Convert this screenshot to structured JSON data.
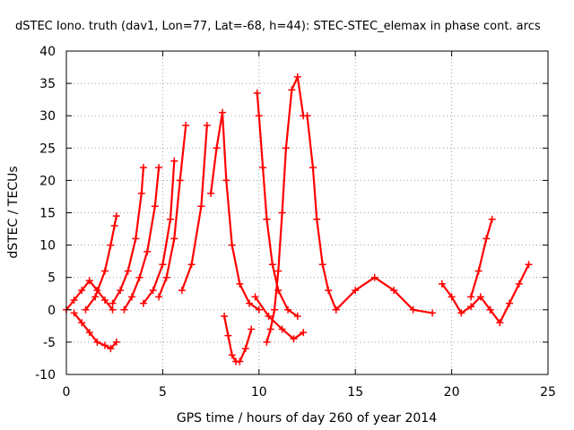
{
  "chart_data": {
    "type": "scatter",
    "title": "dSTEC Iono. truth (dav1, Lon=77, Lat=-68, h=44): STEC-STEC_elemax in phase cont. arcs",
    "xlabel": "GPS time / hours of day 260 of year 2014",
    "ylabel": "dSTEC  / TECUs",
    "xlim": [
      0,
      25
    ],
    "ylim": [
      -10,
      40
    ],
    "x_ticks": [
      "0",
      "5",
      "10",
      "15",
      "20",
      "25"
    ],
    "y_ticks": [
      "-10",
      "-5",
      "0",
      "5",
      "10",
      "15",
      "20",
      "25",
      "30",
      "35",
      "40"
    ],
    "grid": true,
    "marker": "+",
    "color": "#ff0000",
    "series": [
      {
        "x": [
          0.0,
          0.4,
          0.8,
          1.2,
          1.6,
          2.0,
          2.4
        ],
        "y": [
          0,
          1.5,
          3,
          4.5,
          3,
          1.5,
          0
        ]
      },
      {
        "x": [
          0.4,
          0.8,
          1.2,
          1.6,
          2.0,
          2.3,
          2.6
        ],
        "y": [
          -0.5,
          -2,
          -3.5,
          -5,
          -5.5,
          -6,
          -5
        ]
      },
      {
        "x": [
          1.0,
          1.5,
          2.0,
          2.3,
          2.5,
          2.6
        ],
        "y": [
          0,
          2,
          6,
          10,
          13,
          14.5
        ]
      },
      {
        "x": [
          2.4,
          2.8,
          3.2,
          3.6,
          3.9,
          4.0
        ],
        "y": [
          1,
          3,
          6,
          11,
          18,
          22
        ]
      },
      {
        "x": [
          3.0,
          3.4,
          3.8,
          4.2,
          4.6,
          4.8
        ],
        "y": [
          0,
          2,
          5,
          9,
          16,
          22
        ]
      },
      {
        "x": [
          4.0,
          4.5,
          5.0,
          5.4,
          5.6
        ],
        "y": [
          1,
          3,
          7,
          14,
          23
        ]
      },
      {
        "x": [
          4.8,
          5.2,
          5.6,
          5.9,
          6.2
        ],
        "y": [
          2,
          5,
          11,
          20,
          28.5
        ]
      },
      {
        "x": [
          6.0,
          6.5,
          7.0,
          7.3
        ],
        "y": [
          3,
          7,
          16,
          28.5
        ]
      },
      {
        "x": [
          7.5,
          7.8,
          8.1,
          8.3,
          8.6,
          9.0,
          9.5,
          10.0
        ],
        "y": [
          18,
          25,
          30.5,
          20,
          10,
          4,
          1,
          0
        ]
      },
      {
        "x": [
          8.2,
          8.4,
          8.6,
          8.8,
          9.0,
          9.3,
          9.6
        ],
        "y": [
          -1,
          -4,
          -7,
          -8,
          -8,
          -6,
          -3
        ]
      },
      {
        "x": [
          9.9,
          10.0,
          10.2,
          10.4,
          10.7,
          11.0,
          11.5,
          12.0
        ],
        "y": [
          33.5,
          30,
          22,
          14,
          7,
          3,
          0,
          -1
        ]
      },
      {
        "x": [
          10.4,
          10.6,
          10.8,
          11.0,
          11.2,
          11.4,
          11.7,
          12.0,
          12.3
        ],
        "y": [
          -5,
          -3,
          0,
          6,
          15,
          25,
          34,
          36,
          30
        ]
      },
      {
        "x": [
          12.5,
          12.8,
          13.0,
          13.3,
          13.6,
          14.0
        ],
        "y": [
          30,
          22,
          14,
          7,
          3,
          0
        ]
      },
      {
        "x": [
          9.8,
          10.5,
          11.2,
          11.8,
          12.3
        ],
        "y": [
          2,
          -1,
          -3,
          -4.5,
          -3.5
        ]
      },
      {
        "x": [
          14.0,
          15.0,
          16.0,
          17.0,
          18.0,
          19.0
        ],
        "y": [
          0,
          3,
          5,
          3,
          0,
          -0.5
        ]
      },
      {
        "x": [
          19.5,
          20.0,
          20.5,
          21.0,
          21.5,
          22.0
        ],
        "y": [
          4,
          2,
          -0.5,
          0.5,
          2,
          0
        ]
      },
      {
        "x": [
          21.0,
          21.4,
          21.8,
          22.1
        ],
        "y": [
          2,
          6,
          11,
          14
        ]
      },
      {
        "x": [
          22.0,
          22.5,
          23.0,
          23.5,
          24.0
        ],
        "y": [
          0,
          -2,
          1,
          4,
          7
        ]
      }
    ]
  }
}
